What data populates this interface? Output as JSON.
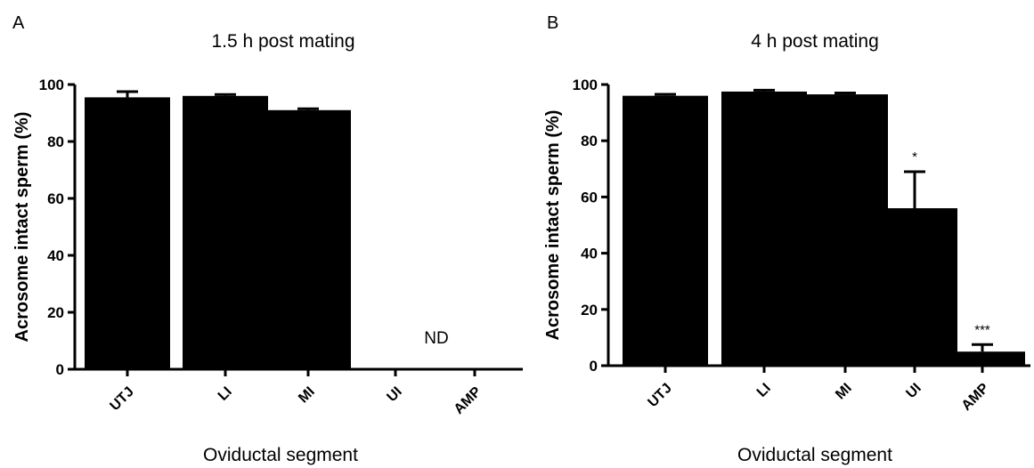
{
  "chart_data": [
    {
      "type": "bar",
      "panel": "A",
      "title": "1.5 h post mating",
      "xlabel": "Oviductal segment",
      "ylabel": "Acrosome intact sperm (%)",
      "ylim": [
        0,
        100
      ],
      "yticks": [
        "0",
        "20",
        "40",
        "60",
        "80",
        "100"
      ],
      "categories": [
        "UTJ",
        "LI",
        "MI",
        "UI",
        "AMP"
      ],
      "values": [
        95.5,
        96,
        91,
        null,
        null
      ],
      "errors": [
        2,
        0.5,
        0.5,
        null,
        null
      ],
      "significance": [
        "",
        "",
        "",
        "",
        ""
      ],
      "annotations": [
        {
          "text": "ND",
          "category": "UI"
        }
      ],
      "grid": false,
      "bar_color": "#000000"
    },
    {
      "type": "bar",
      "panel": "B",
      "title": "4 h post mating",
      "xlabel": "Oviductal segment",
      "ylabel": "Acrosome intact sperm (%)",
      "ylim": [
        0,
        100
      ],
      "yticks": [
        "0",
        "20",
        "40",
        "60",
        "80",
        "100"
      ],
      "categories": [
        "UTJ",
        "LI",
        "MI",
        "UI",
        "AMP"
      ],
      "values": [
        96,
        97.5,
        96.5,
        56,
        5
      ],
      "errors": [
        0.5,
        0.5,
        0.5,
        13,
        2.5
      ],
      "significance": [
        "",
        "",
        "",
        "*",
        "***"
      ],
      "annotations": [],
      "grid": false,
      "bar_color": "#000000"
    }
  ]
}
